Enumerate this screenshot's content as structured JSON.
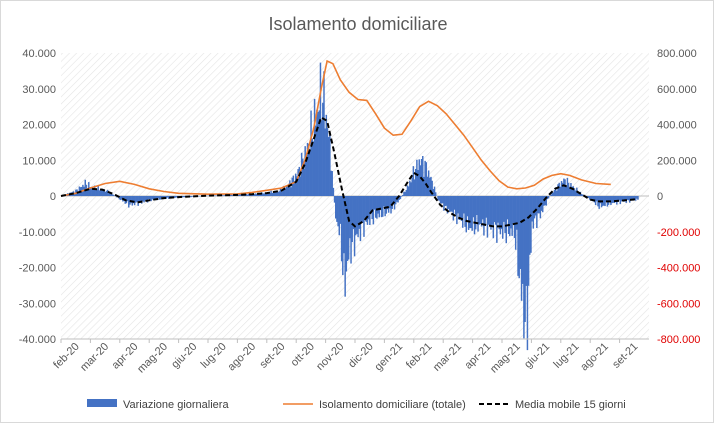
{
  "chart_data": {
    "type": "bar",
    "title": "Isolamento domiciliare",
    "xlabel": "",
    "ylabel": "",
    "months": [
      "feb-20",
      "mar-20",
      "apr-20",
      "mag-20",
      "giu-20",
      "lug-20",
      "ago-20",
      "set-20",
      "ott-20",
      "nov-20",
      "dic-20",
      "gen-21",
      "feb-21",
      "mar-21",
      "apr-21",
      "mag-21",
      "giu-21",
      "lug-21",
      "ago-21",
      "set-21"
    ],
    "y_left": {
      "min": -40000,
      "max": 40000,
      "ticks": [
        40000,
        30000,
        20000,
        10000,
        0,
        -10000,
        -20000,
        -30000,
        -40000
      ],
      "tick_labels": [
        "40.000",
        "30.000",
        "20.000",
        "10.000",
        "0",
        "-10.000",
        "-20.000",
        "-30.000",
        "-40.000"
      ],
      "color": "#595959"
    },
    "y_right": {
      "min": -800000,
      "max": 800000,
      "ticks": [
        800000,
        600000,
        400000,
        200000,
        0,
        -200000,
        -400000,
        -600000,
        -800000
      ],
      "tick_labels": [
        "800.000",
        "600.000",
        "400.000",
        "200.000",
        "0",
        "-200.000",
        "-400.000",
        "-600.000",
        "-800.000"
      ],
      "color_positive": "#595959",
      "color_negative": "#e00000"
    },
    "grid": "diagonal-hatch",
    "legend_position": "bottom",
    "series": [
      {
        "name": "Variazione giornaliera",
        "kind": "bar",
        "axis": "left",
        "color": "#4472c4",
        "points": [
          [
            0,
            0
          ],
          [
            0.5,
            1500
          ],
          [
            0.8,
            3500
          ],
          [
            1.0,
            2500
          ],
          [
            1.3,
            2000
          ],
          [
            1.6,
            1200
          ],
          [
            2.0,
            -1000
          ],
          [
            2.3,
            -2500
          ],
          [
            2.7,
            -1800
          ],
          [
            3.0,
            -1200
          ],
          [
            3.5,
            -700
          ],
          [
            4.0,
            -400
          ],
          [
            4.5,
            -200
          ],
          [
            5.0,
            100
          ],
          [
            5.5,
            200
          ],
          [
            6.0,
            400
          ],
          [
            6.5,
            600
          ],
          [
            7.0,
            900
          ],
          [
            7.4,
            1400
          ],
          [
            7.7,
            3000
          ],
          [
            8.0,
            6000
          ],
          [
            8.3,
            12000
          ],
          [
            8.5,
            18000
          ],
          [
            8.7,
            24000
          ],
          [
            8.85,
            30000
          ],
          [
            9.0,
            22000
          ],
          [
            9.15,
            12000
          ],
          [
            9.3,
            -5000
          ],
          [
            9.5,
            -12000
          ],
          [
            9.6,
            -25000
          ],
          [
            9.8,
            -15000
          ],
          [
            10.0,
            -12000
          ],
          [
            10.3,
            -8000
          ],
          [
            10.6,
            -6000
          ],
          [
            10.9,
            -5000
          ],
          [
            11.2,
            -4000
          ],
          [
            11.5,
            -1000
          ],
          [
            11.8,
            3000
          ],
          [
            12.0,
            7000
          ],
          [
            12.2,
            10000
          ],
          [
            12.4,
            8000
          ],
          [
            12.6,
            4000
          ],
          [
            12.8,
            -1000
          ],
          [
            13.0,
            -3000
          ],
          [
            13.3,
            -5000
          ],
          [
            13.6,
            -7000
          ],
          [
            13.9,
            -9000
          ],
          [
            14.2,
            -8000
          ],
          [
            14.6,
            -9000
          ],
          [
            15.0,
            -10000
          ],
          [
            15.4,
            -10000
          ],
          [
            15.8,
            -38000
          ],
          [
            16.0,
            -8000
          ],
          [
            16.3,
            -5000
          ],
          [
            16.6,
            0
          ],
          [
            16.9,
            3000
          ],
          [
            17.1,
            4500
          ],
          [
            17.4,
            2500
          ],
          [
            17.7,
            500
          ],
          [
            18.0,
            -1000
          ],
          [
            18.3,
            -3000
          ],
          [
            18.7,
            -2000
          ],
          [
            19.2,
            -1500
          ],
          [
            19.6,
            -1000
          ]
        ]
      },
      {
        "name": "Isolamento domiciliare (totale)",
        "kind": "line",
        "axis": "right",
        "color": "#ed7d31",
        "points": [
          [
            0,
            0
          ],
          [
            0.5,
            15000
          ],
          [
            1.0,
            45000
          ],
          [
            1.5,
            70000
          ],
          [
            2.0,
            82000
          ],
          [
            2.5,
            65000
          ],
          [
            3.0,
            40000
          ],
          [
            3.5,
            25000
          ],
          [
            4.0,
            15000
          ],
          [
            5.0,
            10000
          ],
          [
            6.0,
            12000
          ],
          [
            6.5,
            20000
          ],
          [
            7.0,
            32000
          ],
          [
            7.5,
            45000
          ],
          [
            8.0,
            80000
          ],
          [
            8.3,
            200000
          ],
          [
            8.6,
            380000
          ],
          [
            8.85,
            600000
          ],
          [
            9.05,
            755000
          ],
          [
            9.25,
            740000
          ],
          [
            9.5,
            650000
          ],
          [
            9.8,
            580000
          ],
          [
            10.1,
            540000
          ],
          [
            10.4,
            535000
          ],
          [
            10.7,
            460000
          ],
          [
            11.0,
            380000
          ],
          [
            11.3,
            340000
          ],
          [
            11.6,
            345000
          ],
          [
            11.9,
            420000
          ],
          [
            12.2,
            500000
          ],
          [
            12.5,
            530000
          ],
          [
            12.8,
            505000
          ],
          [
            13.1,
            460000
          ],
          [
            13.4,
            400000
          ],
          [
            13.7,
            340000
          ],
          [
            14.0,
            270000
          ],
          [
            14.3,
            200000
          ],
          [
            14.6,
            140000
          ],
          [
            14.9,
            85000
          ],
          [
            15.2,
            50000
          ],
          [
            15.5,
            40000
          ],
          [
            15.8,
            45000
          ],
          [
            16.1,
            60000
          ],
          [
            16.4,
            95000
          ],
          [
            16.7,
            115000
          ],
          [
            17.0,
            125000
          ],
          [
            17.3,
            115000
          ],
          [
            17.7,
            90000
          ],
          [
            18.2,
            70000
          ],
          [
            18.7,
            65000
          ]
        ]
      },
      {
        "name": "Media mobile 15 giorni",
        "kind": "dashed-line",
        "axis": "left",
        "color": "#000000",
        "points": [
          [
            0,
            0
          ],
          [
            0.5,
            800
          ],
          [
            1.0,
            2000
          ],
          [
            1.4,
            1800
          ],
          [
            1.8,
            500
          ],
          [
            2.2,
            -1200
          ],
          [
            2.6,
            -1800
          ],
          [
            3.0,
            -1200
          ],
          [
            3.5,
            -600
          ],
          [
            4.0,
            -300
          ],
          [
            4.5,
            -100
          ],
          [
            5.0,
            100
          ],
          [
            5.5,
            200
          ],
          [
            6.0,
            300
          ],
          [
            6.5,
            500
          ],
          [
            7.0,
            800
          ],
          [
            7.5,
            1500
          ],
          [
            8.0,
            4000
          ],
          [
            8.3,
            9000
          ],
          [
            8.6,
            16000
          ],
          [
            8.85,
            22000
          ],
          [
            9.05,
            21000
          ],
          [
            9.3,
            12000
          ],
          [
            9.55,
            2000
          ],
          [
            9.8,
            -7000
          ],
          [
            10.0,
            -8500
          ],
          [
            10.3,
            -7000
          ],
          [
            10.6,
            -4000
          ],
          [
            10.9,
            -3500
          ],
          [
            11.2,
            -3000
          ],
          [
            11.5,
            0
          ],
          [
            11.8,
            4000
          ],
          [
            12.0,
            6500
          ],
          [
            12.2,
            5500
          ],
          [
            12.4,
            3500
          ],
          [
            12.6,
            1000
          ],
          [
            12.9,
            -2500
          ],
          [
            13.2,
            -4500
          ],
          [
            13.5,
            -6000
          ],
          [
            13.8,
            -7000
          ],
          [
            14.1,
            -7500
          ],
          [
            14.4,
            -8000
          ],
          [
            14.7,
            -8500
          ],
          [
            15.0,
            -8500
          ],
          [
            15.3,
            -8000
          ],
          [
            15.6,
            -7500
          ],
          [
            15.9,
            -6000
          ],
          [
            16.2,
            -3500
          ],
          [
            16.5,
            -500
          ],
          [
            16.8,
            2000
          ],
          [
            17.1,
            3000
          ],
          [
            17.4,
            2000
          ],
          [
            17.7,
            500
          ],
          [
            18.0,
            -1000
          ],
          [
            18.3,
            -1500
          ],
          [
            18.7,
            -1500
          ],
          [
            19.2,
            -1200
          ],
          [
            19.6,
            -900
          ]
        ]
      }
    ]
  }
}
